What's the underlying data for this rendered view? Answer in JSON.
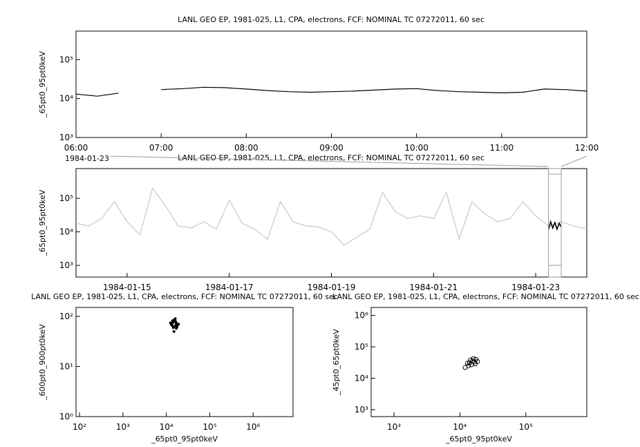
{
  "chart_data": [
    {
      "type": "line",
      "title": "LANL GEO EP, 1981-025, L1, CPA, electrons, FCF: NOMINAL TC 07272011, 60 sec",
      "y_label": "_65pt0_95pt0keV",
      "annotation": "1984-01-23",
      "log_y": true,
      "x": [
        "06:00",
        "06:15",
        "06:30",
        "06:45",
        "07:00",
        "07:15",
        "07:30",
        "07:45",
        "08:00",
        "08:15",
        "08:30",
        "08:45",
        "09:00",
        "09:15",
        "09:30",
        "09:45",
        "10:00",
        "10:15",
        "10:30",
        "10:45",
        "11:00",
        "11:15",
        "11:30",
        "11:45",
        "12:00"
      ],
      "series": [
        {
          "name": "_65pt0_95pt0keV",
          "color": "#000000",
          "values": [
            13000,
            11500,
            13800,
            null,
            17000,
            18000,
            19500,
            19000,
            17500,
            16000,
            15000,
            14500,
            15000,
            15500,
            16500,
            17500,
            18000,
            16000,
            15000,
            14500,
            14000,
            14500,
            17500,
            17000,
            15500
          ]
        }
      ],
      "xlim": [
        "06:00",
        "12:00"
      ],
      "xticks": [
        "06:00",
        "07:00",
        "08:00",
        "09:00",
        "10:00",
        "11:00",
        "12:00"
      ],
      "ylim": [
        1000,
        540000
      ],
      "yticks": [
        {
          "value": 1000,
          "label": "10³"
        },
        {
          "value": 10000,
          "label": "10⁴"
        },
        {
          "value": 100000,
          "label": "10⁵"
        }
      ]
    },
    {
      "type": "line",
      "title": "LANL GEO EP, 1981-025, L1, CPA, electrons, FCF: NOMINAL TC 07272011, 60 sec",
      "y_label": "_65pt0_95pt0keV",
      "log_y": true,
      "x": [
        "1984-01-14 00:00",
        "1984-01-14 06:00",
        "1984-01-14 12:00",
        "1984-01-14 18:00",
        "1984-01-15 00:00",
        "1984-01-15 06:00",
        "1984-01-15 12:00",
        "1984-01-15 18:00",
        "1984-01-16 00:00",
        "1984-01-16 06:00",
        "1984-01-16 12:00",
        "1984-01-16 18:00",
        "1984-01-17 00:00",
        "1984-01-17 06:00",
        "1984-01-17 12:00",
        "1984-01-17 18:00",
        "1984-01-18 00:00",
        "1984-01-18 06:00",
        "1984-01-18 12:00",
        "1984-01-18 18:00",
        "1984-01-19 00:00",
        "1984-01-19 06:00",
        "1984-01-19 12:00",
        "1984-01-19 18:00",
        "1984-01-20 00:00",
        "1984-01-20 06:00",
        "1984-01-20 12:00",
        "1984-01-20 18:00",
        "1984-01-21 00:00",
        "1984-01-21 06:00",
        "1984-01-21 12:00",
        "1984-01-21 18:00",
        "1984-01-22 00:00",
        "1984-01-22 06:00",
        "1984-01-22 12:00",
        "1984-01-22 18:00",
        "1984-01-23 00:00",
        "1984-01-23 06:00",
        "1984-01-23 12:00",
        "1984-01-23 18:00",
        "1984-01-24 00:00"
      ],
      "series": [
        {
          "name": "all",
          "color": "#c8c8c8",
          "values": [
            18000,
            15000,
            25000,
            80000,
            20000,
            8000,
            200000,
            60000,
            15000,
            13000,
            20000,
            12000,
            90000,
            18000,
            12000,
            6000,
            80000,
            20000,
            15000,
            14000,
            10000,
            4000,
            7000,
            12000,
            150000,
            40000,
            25000,
            30000,
            25000,
            150000,
            6000,
            80000,
            35000,
            20000,
            25000,
            80000,
            30000,
            15000,
            20000,
            15000,
            12000
          ]
        }
      ],
      "highlight": {
        "x": [
          "1984-01-23 06:00",
          "1984-01-23 07:00",
          "1984-01-23 08:00",
          "1984-01-23 09:00",
          "1984-01-23 10:00",
          "1984-01-23 11:00",
          "1984-01-23 12:00"
        ],
        "color": "#000000",
        "values": [
          12000,
          20000,
          13000,
          19000,
          12000,
          18000,
          14000
        ]
      },
      "xlim": [
        "1984-01-14",
        "1984-01-24"
      ],
      "xticks": [
        "1984-01-15",
        "1984-01-17",
        "1984-01-19",
        "1984-01-21",
        "1984-01-23"
      ],
      "ylim": [
        450,
        770000
      ],
      "yticks": [
        {
          "value": 1000,
          "label": "10³"
        },
        {
          "value": 10000,
          "label": "10⁴"
        },
        {
          "value": 100000,
          "label": "10⁵"
        }
      ]
    },
    {
      "type": "scatter",
      "title": "LANL GEO EP, 1981-025, L1, CPA, electrons, FCF: NOMINAL TC 07272011, 60 sec",
      "x_label": "_65pt0_95pt0keV",
      "y_label": "_600pt0_900pt0keV",
      "log_x": true,
      "log_y": true,
      "color": "#000000",
      "x": [
        13000,
        14000,
        15000,
        16000,
        17000,
        18000,
        14500,
        15500,
        16500,
        17500,
        13500,
        19000,
        15000,
        16000,
        12500,
        14000,
        17000
      ],
      "values": [
        70,
        75,
        80,
        65,
        72,
        68,
        60,
        85,
        78,
        62,
        66,
        70,
        50,
        90,
        74,
        82,
        58
      ],
      "xlim": [
        83,
        8300000
      ],
      "ylim": [
        1,
        151
      ],
      "xticks": [
        {
          "value": 100,
          "label": "10²"
        },
        {
          "value": 1000,
          "label": "10³"
        },
        {
          "value": 10000,
          "label": "10⁴"
        },
        {
          "value": 100000,
          "label": "10⁵"
        },
        {
          "value": 1000000,
          "label": "10⁶"
        }
      ],
      "yticks": [
        {
          "value": 1,
          "label": "10⁰"
        },
        {
          "value": 10,
          "label": "10¹"
        },
        {
          "value": 100,
          "label": "10²"
        }
      ]
    },
    {
      "type": "scatter",
      "title": "LANL GEO EP, 1981-025, L1, CPA, electrons, FCF: NOMINAL TC 07272011, 60 sec",
      "x_label": "_65pt0_95pt0keV",
      "y_label": "_45pt0_65pt0keV",
      "log_x": true,
      "log_y": true,
      "color": "#000000",
      "hollow": true,
      "x": [
        13000,
        14500,
        16000,
        17500,
        18500,
        17000,
        15000,
        13500,
        12000,
        15500,
        16500,
        14000
      ],
      "values": [
        30000,
        38000,
        42000,
        40000,
        34000,
        29000,
        27000,
        25000,
        22000,
        35000,
        33000,
        31000
      ],
      "xlim": [
        450,
        840000
      ],
      "ylim": [
        600,
        1800000
      ],
      "xticks": [
        {
          "value": 1000,
          "label": "10³"
        },
        {
          "value": 10000,
          "label": "10⁴"
        },
        {
          "value": 100000,
          "label": "10⁵"
        }
      ],
      "yticks": [
        {
          "value": 1000,
          "label": "10³"
        },
        {
          "value": 10000,
          "label": "10⁴"
        },
        {
          "value": 100000,
          "label": "10⁵"
        },
        {
          "value": 1000000,
          "label": "10⁶"
        }
      ]
    }
  ]
}
